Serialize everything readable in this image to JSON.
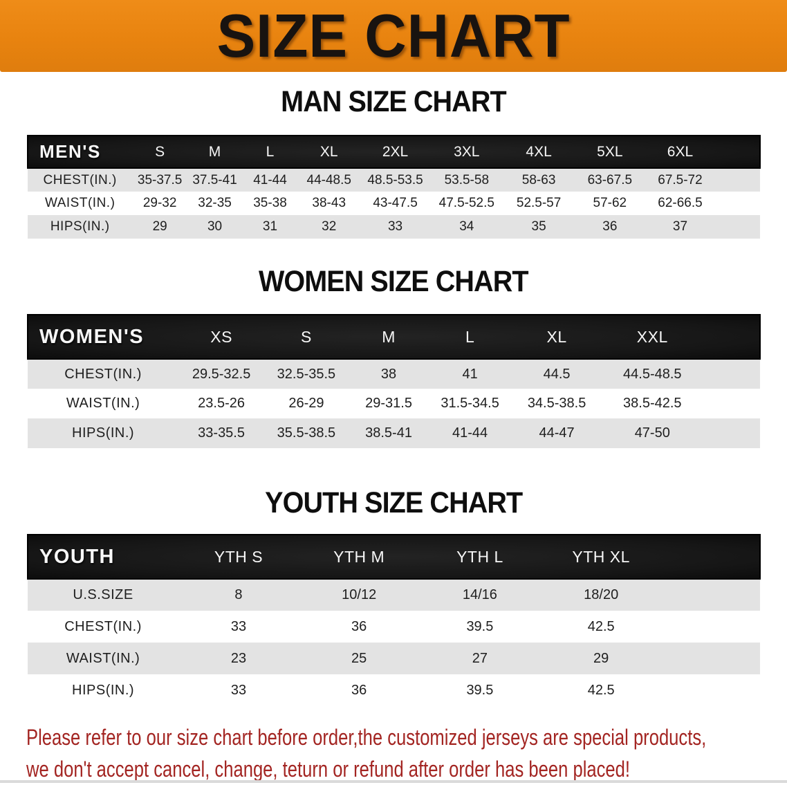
{
  "banner": {
    "title": "SIZE CHART"
  },
  "colors": {
    "banner_bg": "#E8830F",
    "header_bar": "#171717",
    "row_alt": "#E3E3E3",
    "disclaimer_red": "#A32522"
  },
  "sections": [
    {
      "id": "men",
      "heading": "MAN SIZE CHART",
      "table": {
        "label": "MEN'S",
        "columns": [
          "S",
          "M",
          "L",
          "XL",
          "2XL",
          "3XL",
          "4XL",
          "5XL",
          "6XL"
        ],
        "rows": [
          {
            "label": "CHEST(IN.)",
            "values": [
              "35-37.5",
              "37.5-41",
              "41-44",
              "44-48.5",
              "48.5-53.5",
              "53.5-58",
              "58-63",
              "63-67.5",
              "67.5-72"
            ]
          },
          {
            "label": "WAIST(IN.)",
            "values": [
              "29-32",
              "32-35",
              "35-38",
              "38-43",
              "43-47.5",
              "47.5-52.5",
              "52.5-57",
              "57-62",
              "62-66.5"
            ]
          },
          {
            "label": "HIPS(IN.)",
            "values": [
              "29",
              "30",
              "31",
              "32",
              "33",
              "34",
              "35",
              "36",
              "37"
            ]
          }
        ]
      }
    },
    {
      "id": "women",
      "heading": "WOMEN SIZE CHART",
      "table": {
        "label": "WOMEN'S",
        "columns": [
          "XS",
          "S",
          "M",
          "L",
          "XL",
          "XXL"
        ],
        "rows": [
          {
            "label": "CHEST(IN.)",
            "values": [
              "29.5-32.5",
              "32.5-35.5",
              "38",
              "41",
              "44.5",
              "44.5-48.5"
            ]
          },
          {
            "label": "WAIST(IN.)",
            "values": [
              "23.5-26",
              "26-29",
              "29-31.5",
              "31.5-34.5",
              "34.5-38.5",
              "38.5-42.5"
            ]
          },
          {
            "label": "HIPS(IN.)",
            "values": [
              "33-35.5",
              "35.5-38.5",
              "38.5-41",
              "41-44",
              "44-47",
              "47-50"
            ]
          }
        ]
      }
    },
    {
      "id": "youth",
      "heading": "YOUTH SIZE CHART",
      "table": {
        "label": "YOUTH",
        "columns": [
          "YTH S",
          "YTH M",
          "YTH L",
          "YTH XL"
        ],
        "rows": [
          {
            "label": "U.S.SIZE",
            "values": [
              "8",
              "10/12",
              "14/16",
              "18/20"
            ]
          },
          {
            "label": "CHEST(IN.)",
            "values": [
              "33",
              "36",
              "39.5",
              "42.5"
            ]
          },
          {
            "label": "WAIST(IN.)",
            "values": [
              "23",
              "25",
              "27",
              "29"
            ]
          },
          {
            "label": "HIPS(IN.)",
            "values": [
              "33",
              "36",
              "39.5",
              "42.5"
            ]
          }
        ]
      }
    }
  ],
  "disclaimer": {
    "line1": "Please refer to our size chart before order,the customized jerseys are special products,",
    "line2": "we don't accept cancel, change, teturn or refund after order has been placed!"
  }
}
